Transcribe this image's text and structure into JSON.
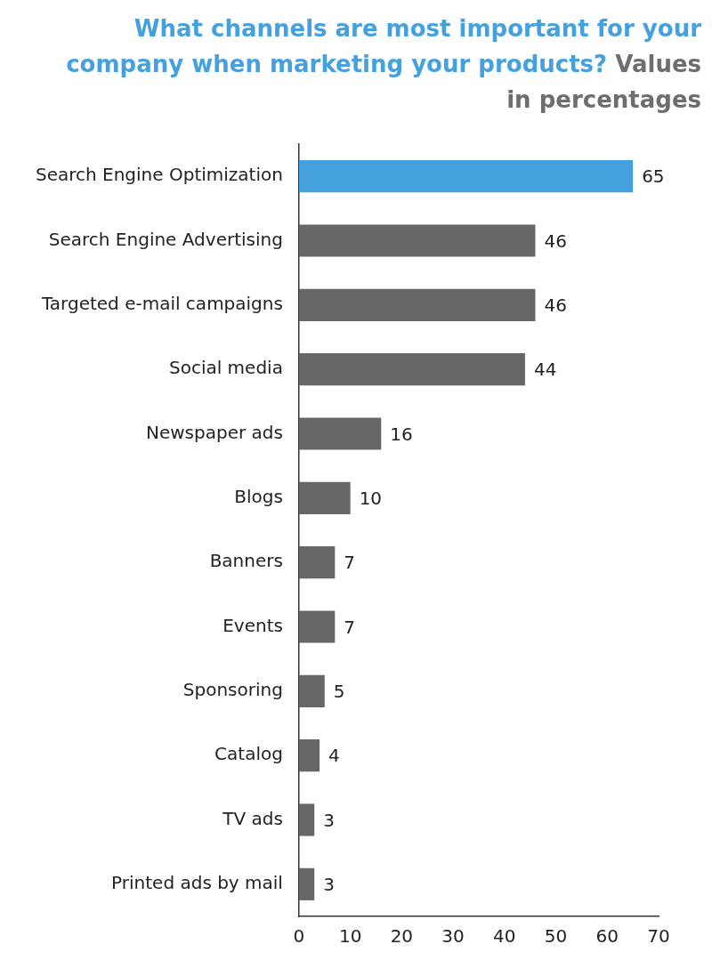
{
  "chart_data": {
    "type": "bar",
    "orientation": "horizontal",
    "title": "What channels are most important for your company when marketing your products?",
    "subtitle": "Values in percentages",
    "categories": [
      "Search Engine Optimization",
      "Search Engine Advertising",
      "Targeted e-mail campaigns",
      "Social media",
      "Newspaper ads",
      "Blogs",
      "Banners",
      "Events",
      "Sponsoring",
      "Catalog",
      "TV ads",
      "Printed ads by mail"
    ],
    "values": [
      65,
      46,
      46,
      44,
      16,
      10,
      7,
      7,
      5,
      4,
      3,
      3
    ],
    "colors": [
      "#45a1de",
      "#666666",
      "#666666",
      "#666666",
      "#666666",
      "#666666",
      "#666666",
      "#666666",
      "#666666",
      "#666666",
      "#666666",
      "#666666"
    ],
    "xlim": [
      0,
      70
    ],
    "xticks": [
      0,
      10,
      20,
      30,
      40,
      50,
      60,
      70
    ],
    "data_labels": true,
    "grid": false,
    "legend": false
  }
}
